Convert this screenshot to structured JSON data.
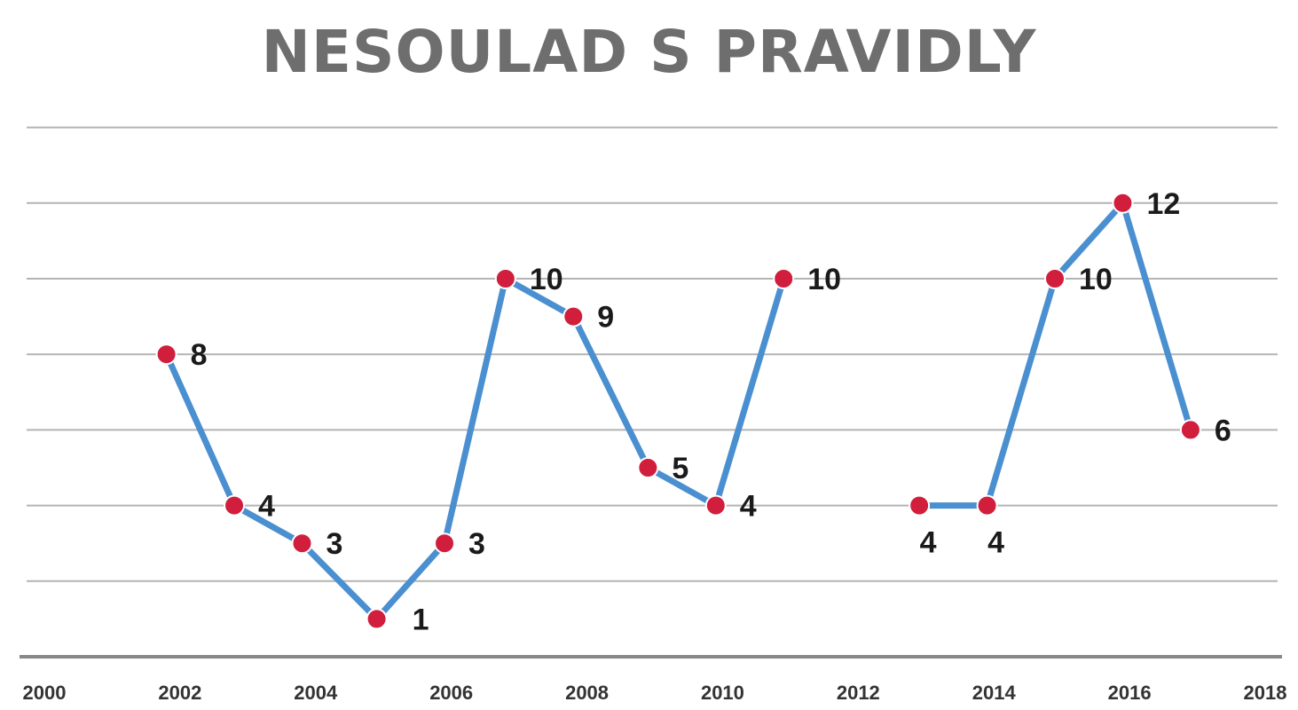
{
  "chart_data": {
    "type": "line",
    "title": "NESOULAD S PRAVIDLY",
    "xlabel": "",
    "ylabel": "",
    "x_ticks": [
      "2000",
      "2002",
      "2004",
      "2006",
      "2008",
      "2010",
      "2012",
      "2014",
      "2016",
      "2018"
    ],
    "xlim": [
      2000,
      2018
    ],
    "ylim": [
      0,
      14
    ],
    "grid": true,
    "legend": "none",
    "series": [
      {
        "points": [
          {
            "x": 2001.8,
            "y": 8,
            "label": "8"
          },
          {
            "x": 2002.8,
            "y": 4,
            "label": "4"
          },
          {
            "x": 2003.8,
            "y": 3,
            "label": "3"
          },
          {
            "x": 2004.9,
            "y": 1,
            "label": "1"
          },
          {
            "x": 2005.9,
            "y": 3,
            "label": "3"
          },
          {
            "x": 2006.8,
            "y": 10,
            "label": "10"
          },
          {
            "x": 2007.8,
            "y": 9,
            "label": "9"
          },
          {
            "x": 2008.9,
            "y": 5,
            "label": "5"
          },
          {
            "x": 2009.9,
            "y": 4,
            "label": "4"
          },
          {
            "x": 2010.9,
            "y": 10,
            "label": "10"
          },
          {
            "x": 2012.9,
            "y": 4,
            "label": "4"
          },
          {
            "x": 2013.9,
            "y": 4,
            "label": "4"
          },
          {
            "x": 2014.9,
            "y": 10,
            "label": "10"
          },
          {
            "x": 2015.9,
            "y": 12,
            "label": "12"
          },
          {
            "x": 2016.9,
            "y": 6,
            "label": "6"
          }
        ],
        "segments": [
          [
            0,
            9
          ],
          [
            10,
            14
          ]
        ]
      }
    ],
    "colors": {
      "line": "#4a8fd0",
      "marker": "#d01e3c",
      "grid": "#b4b4b4",
      "axis": "#888888",
      "title": "#6e6e6e"
    }
  }
}
